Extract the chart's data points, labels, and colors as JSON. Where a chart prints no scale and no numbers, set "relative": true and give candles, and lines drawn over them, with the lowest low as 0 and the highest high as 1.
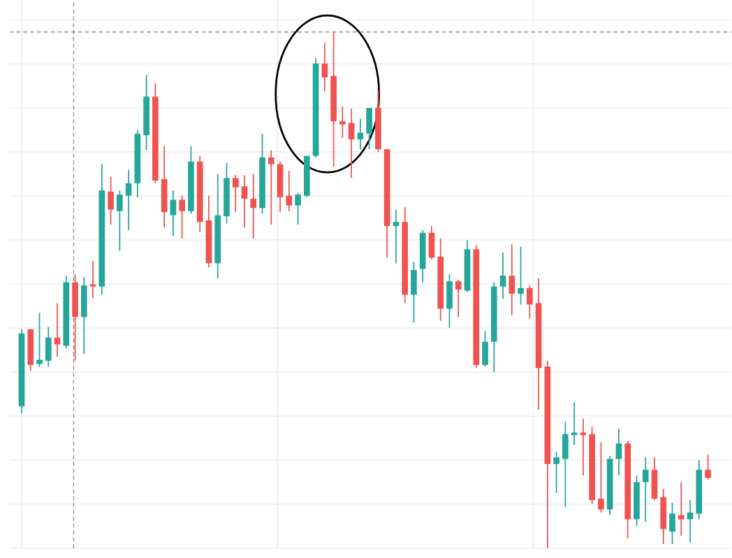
{
  "chart_data": {
    "type": "candlestick",
    "relative": true,
    "grid": true,
    "categories": [
      null,
      null,
      null,
      null,
      null,
      null,
      null,
      null,
      null,
      null,
      null,
      null,
      null,
      null,
      null,
      null,
      null,
      null,
      null,
      null,
      null,
      null,
      null,
      null,
      null,
      null,
      null,
      null,
      null,
      null,
      null,
      null,
      null,
      null,
      null,
      null,
      null,
      null,
      null,
      null,
      null,
      null,
      null,
      null,
      null,
      null,
      null,
      null,
      null,
      null,
      null,
      null,
      null,
      null,
      null,
      null,
      null,
      null,
      null,
      null,
      null,
      null,
      null,
      null,
      null,
      null,
      null,
      null,
      null,
      null,
      null,
      null,
      null,
      null,
      null,
      null,
      null,
      null
    ],
    "ohlc": [
      [
        0.275,
        0.424,
        0.261,
        0.416
      ],
      [
        0.424,
        0.424,
        0.344,
        0.355
      ],
      [
        0.357,
        0.456,
        0.352,
        0.365
      ],
      [
        0.363,
        0.429,
        0.352,
        0.408
      ],
      [
        0.408,
        0.475,
        0.371,
        0.395
      ],
      [
        0.392,
        0.528,
        0.387,
        0.515
      ],
      [
        0.515,
        0.531,
        0.363,
        0.448
      ],
      [
        0.448,
        0.525,
        0.376,
        0.509
      ],
      [
        0.509,
        0.557,
        0.485,
        0.507
      ],
      [
        0.507,
        0.744,
        0.491,
        0.693
      ],
      [
        0.691,
        0.72,
        0.627,
        0.656
      ],
      [
        0.653,
        0.693,
        0.576,
        0.685
      ],
      [
        0.683,
        0.733,
        0.616,
        0.707
      ],
      [
        0.707,
        0.811,
        0.68,
        0.803
      ],
      [
        0.8,
        0.917,
        0.771,
        0.875
      ],
      [
        0.875,
        0.901,
        0.707,
        0.712
      ],
      [
        0.715,
        0.779,
        0.621,
        0.651
      ],
      [
        0.645,
        0.693,
        0.605,
        0.675
      ],
      [
        0.675,
        0.683,
        0.6,
        0.653
      ],
      [
        0.653,
        0.779,
        0.648,
        0.749
      ],
      [
        0.749,
        0.76,
        0.613,
        0.632
      ],
      [
        0.635,
        0.683,
        0.544,
        0.552
      ],
      [
        0.552,
        0.725,
        0.523,
        0.645
      ],
      [
        0.643,
        0.747,
        0.629,
        0.717
      ],
      [
        0.717,
        0.723,
        0.651,
        0.699
      ],
      [
        0.701,
        0.723,
        0.621,
        0.677
      ],
      [
        0.677,
        0.725,
        0.6,
        0.659
      ],
      [
        0.659,
        0.803,
        0.648,
        0.757
      ],
      [
        0.757,
        0.771,
        0.627,
        0.744
      ],
      [
        0.744,
        0.749,
        0.651,
        0.68
      ],
      [
        0.683,
        0.731,
        0.653,
        0.664
      ],
      [
        0.664,
        0.688,
        0.627,
        0.685
      ],
      [
        0.683,
        0.76,
        0.68,
        0.76
      ],
      [
        0.76,
        0.949,
        0.757,
        0.939
      ],
      [
        0.939,
        0.979,
        0.885,
        0.912
      ],
      [
        0.915,
        1,
        0.739,
        0.827
      ],
      [
        0.827,
        0.856,
        0.795,
        0.821
      ],
      [
        0.824,
        0.851,
        0.717,
        0.792
      ],
      [
        0.792,
        0.832,
        0.773,
        0.805
      ],
      [
        0.803,
        0.853,
        0.773,
        0.853
      ],
      [
        0.853,
        0.888,
        0.768,
        0.773
      ],
      [
        0.773,
        0.773,
        0.563,
        0.624
      ],
      [
        0.624,
        0.656,
        0.552,
        0.632
      ],
      [
        0.632,
        0.661,
        0.475,
        0.491
      ],
      [
        0.491,
        0.555,
        0.437,
        0.539
      ],
      [
        0.541,
        0.616,
        0.515,
        0.611
      ],
      [
        0.611,
        0.624,
        0.56,
        0.563
      ],
      [
        0.565,
        0.6,
        0.44,
        0.464
      ],
      [
        0.464,
        0.531,
        0.427,
        0.517
      ],
      [
        0.517,
        0.52,
        0.448,
        0.501
      ],
      [
        0.499,
        0.597,
        0.496,
        0.579
      ],
      [
        0.579,
        0.587,
        0.349,
        0.355
      ],
      [
        0.355,
        0.421,
        0.352,
        0.4
      ],
      [
        0.4,
        0.515,
        0.341,
        0.507
      ],
      [
        0.507,
        0.573,
        0.483,
        0.528
      ],
      [
        0.528,
        0.589,
        0.451,
        0.493
      ],
      [
        0.493,
        0.584,
        0.472,
        0.504
      ],
      [
        0.504,
        0.509,
        0.445,
        0.472
      ],
      [
        0.475,
        0.523,
        0.269,
        0.349
      ],
      [
        0.352,
        0.363,
        0,
        0.163
      ],
      [
        0.163,
        0.187,
        0.107,
        0.176
      ],
      [
        0.173,
        0.245,
        0.08,
        0.221
      ],
      [
        0.219,
        0.283,
        0.2,
        0.224
      ],
      [
        0.224,
        0.251,
        0.141,
        0.219
      ],
      [
        0.221,
        0.235,
        0.085,
        0.093
      ],
      [
        0.096,
        0.205,
        0.069,
        0.075
      ],
      [
        0.075,
        0.179,
        0.064,
        0.173
      ],
      [
        0.173,
        0.232,
        0.141,
        0.203
      ],
      [
        0.203,
        0.208,
        0.019,
        0.056
      ],
      [
        0.056,
        0.141,
        0.043,
        0.128
      ],
      [
        0.128,
        0.176,
        0.051,
        0.152
      ],
      [
        0.152,
        0.176,
        0.093,
        0.096
      ],
      [
        0.099,
        0.115,
        0.008,
        0.037
      ],
      [
        0.032,
        0.088,
        0.008,
        0.067
      ],
      [
        0.064,
        0.128,
        0.024,
        0.056
      ],
      [
        0.056,
        0.093,
        0.011,
        0.069
      ],
      [
        0.067,
        0.171,
        0.056,
        0.152
      ],
      [
        0.152,
        0.181,
        0.133,
        0.136
      ]
    ],
    "colors": [
      "#26a69a",
      "#ef5350",
      "#26a69a",
      "#26a69a",
      "#ef5350",
      "#26a69a",
      "#ef5350",
      "#26a69a",
      "#ef5350",
      "#26a69a",
      "#ef5350",
      "#26a69a",
      "#26a69a",
      "#26a69a",
      "#26a69a",
      "#ef5350",
      "#ef5350",
      "#26a69a",
      "#ef5350",
      "#26a69a",
      "#ef5350",
      "#ef5350",
      "#26a69a",
      "#26a69a",
      "#ef5350",
      "#ef5350",
      "#ef5350",
      "#26a69a",
      "#ef5350",
      "#ef5350",
      "#ef5350",
      "#26a69a",
      "#26a69a",
      "#26a69a",
      "#ef5350",
      "#ef5350",
      "#ef5350",
      "#ef5350",
      "#26a69a",
      "#26a69a",
      "#ef5350",
      "#ef5350",
      "#26a69a",
      "#ef5350",
      "#26a69a",
      "#26a69a",
      "#ef5350",
      "#ef5350",
      "#26a69a",
      "#ef5350",
      "#26a69a",
      "#ef5350",
      "#26a69a",
      "#26a69a",
      "#26a69a",
      "#ef5350",
      "#26a69a",
      "#ef5350",
      "#ef5350",
      "#ef5350",
      "#26a69a",
      "#26a69a",
      "#26a69a",
      "#ef5350",
      "#ef5350",
      "#ef5350",
      "#26a69a",
      "#26a69a",
      "#ef5350",
      "#26a69a",
      "#26a69a",
      "#ef5350",
      "#ef5350",
      "#26a69a",
      "#ef5350",
      "#26a69a",
      "#26a69a",
      "#ef5350"
    ],
    "ref_lines": [
      {
        "axis": "y",
        "value": 1,
        "color": "#787b86",
        "line_style": "dashed"
      }
    ]
  }
}
